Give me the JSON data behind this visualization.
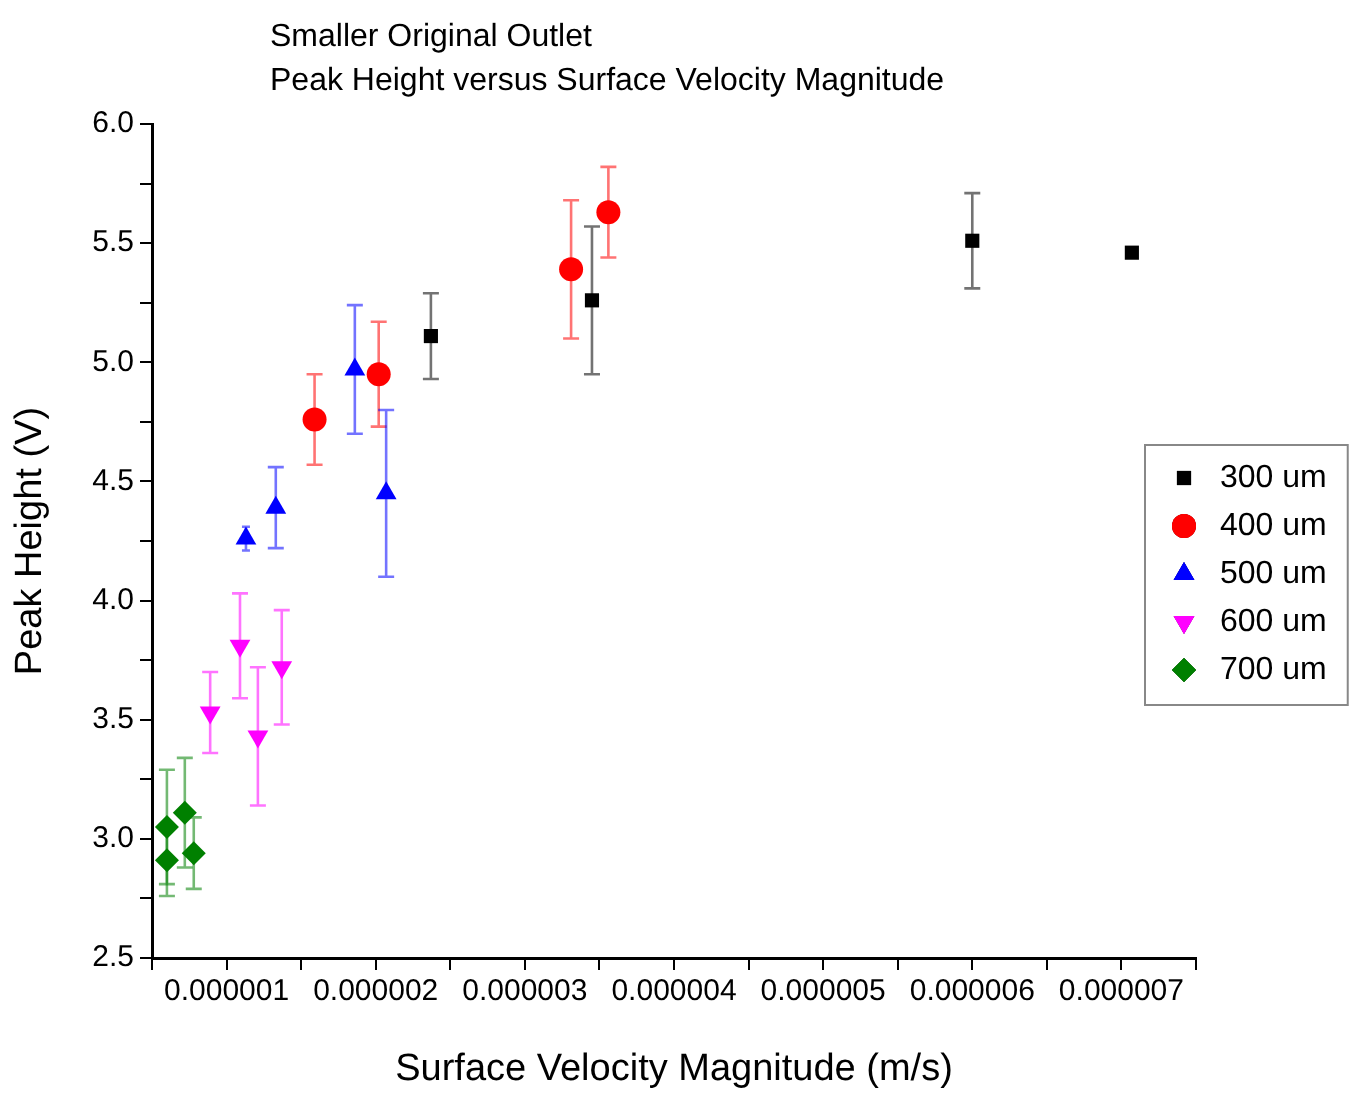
{
  "chart_data": {
    "type": "scatter",
    "title": "Smaller Original Outlet",
    "subtitle": "Peak Height versus Surface Velocity Magnitude",
    "xlabel": "Surface Velocity Magnitude (m/s)",
    "ylabel": "Peak Height (V)",
    "xlim": [
      5e-07,
      7.5e-06
    ],
    "xticks": [
      {
        "value": 5e-07,
        "label": null
      },
      {
        "value": 1e-06,
        "label": "0.000001"
      },
      {
        "value": 1.5e-06,
        "label": null
      },
      {
        "value": 2e-06,
        "label": "0.000002"
      },
      {
        "value": 2.5e-06,
        "label": null
      },
      {
        "value": 3e-06,
        "label": "0.000003"
      },
      {
        "value": 3.5e-06,
        "label": null
      },
      {
        "value": 4e-06,
        "label": "0.000004"
      },
      {
        "value": 4.5e-06,
        "label": null
      },
      {
        "value": 5e-06,
        "label": "0.000005"
      },
      {
        "value": 5.5e-06,
        "label": null
      },
      {
        "value": 6e-06,
        "label": "0.000006"
      },
      {
        "value": 6.5e-06,
        "label": null
      },
      {
        "value": 7e-06,
        "label": "0.000007"
      },
      {
        "value": 7.5e-06,
        "label": null
      }
    ],
    "ylim": [
      2.5,
      6.0
    ],
    "yticks": [
      {
        "value": 2.5,
        "label": "2.5"
      },
      {
        "value": 2.75,
        "label": null
      },
      {
        "value": 3.0,
        "label": "3.0"
      },
      {
        "value": 3.25,
        "label": null
      },
      {
        "value": 3.5,
        "label": "3.5"
      },
      {
        "value": 3.75,
        "label": null
      },
      {
        "value": 4.0,
        "label": "4.0"
      },
      {
        "value": 4.25,
        "label": null
      },
      {
        "value": 4.5,
        "label": "4.5"
      },
      {
        "value": 4.75,
        "label": null
      },
      {
        "value": 5.0,
        "label": "5.0"
      },
      {
        "value": 5.25,
        "label": null
      },
      {
        "value": 5.5,
        "label": "5.5"
      },
      {
        "value": 5.75,
        "label": null
      },
      {
        "value": 6.0,
        "label": "6.0"
      }
    ],
    "grid": false,
    "legend": "right",
    "series": [
      {
        "name": "300 um",
        "color": "#000000",
        "marker": "square",
        "x": [
          2.37e-06,
          3.45e-06,
          6e-06,
          7.07e-06
        ],
        "values": [
          5.11,
          5.26,
          5.51,
          5.46
        ],
        "errors": [
          0.18,
          0.31,
          0.2,
          null
        ]
      },
      {
        "name": "400 um",
        "color": "#ff0000",
        "marker": "circle",
        "x": [
          1.59e-06,
          2.02e-06,
          3.31e-06,
          3.56e-06
        ],
        "values": [
          4.76,
          4.95,
          5.39,
          5.63
        ],
        "errors": [
          0.19,
          0.22,
          0.29,
          0.19
        ]
      },
      {
        "name": "500 um",
        "color": "#0000ff",
        "marker": "triangle",
        "x": [
          1.13e-06,
          1.33e-06,
          1.86e-06,
          2.07e-06
        ],
        "values": [
          4.26,
          4.39,
          4.97,
          4.45
        ],
        "errors": [
          0.05,
          0.17,
          0.27,
          0.35
        ]
      },
      {
        "name": "600 um",
        "color": "#ff00ff",
        "marker": "triangle-down",
        "x": [
          8.9e-07,
          1.09e-06,
          1.21e-06,
          1.37e-06
        ],
        "values": [
          3.53,
          3.81,
          3.43,
          3.72
        ],
        "errors": [
          0.17,
          0.22,
          0.29,
          0.24
        ]
      },
      {
        "name": "700 um",
        "color": "#008000",
        "marker": "diamond",
        "x": [
          6e-07,
          6e-07,
          7.2e-07,
          7.8e-07
        ],
        "values": [
          3.05,
          2.91,
          3.11,
          2.94
        ],
        "errors": [
          0.24,
          0.15,
          0.23,
          0.15
        ]
      }
    ]
  }
}
